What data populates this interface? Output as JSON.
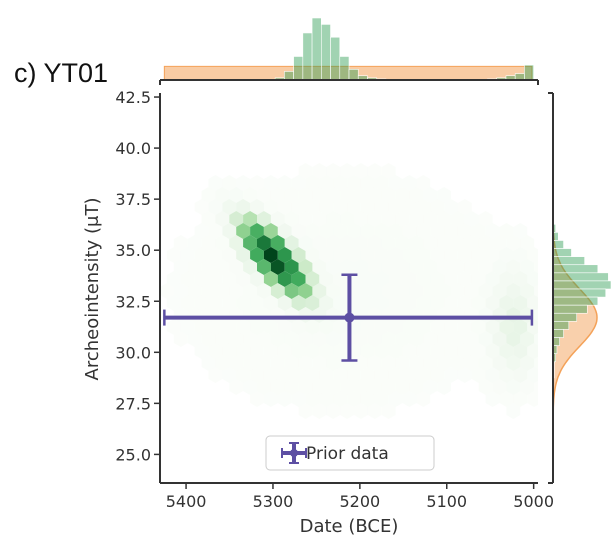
{
  "panel": {
    "label": "c) YT01"
  },
  "chart_data": {
    "type": "scatter",
    "subtype": "hexbin-density with marginal histograms",
    "xlabel": "Date (BCE)",
    "ylabel": "Archeointensity (μT)",
    "x_inverted": true,
    "xlim": [
      5430,
      4995
    ],
    "ylim": [
      23.6,
      42.6
    ],
    "xticks": [
      5400,
      5300,
      5200,
      5100,
      5000
    ],
    "xtick_labels": [
      "5400",
      "5300",
      "5200",
      "5100",
      "5000"
    ],
    "yticks": [
      25.0,
      27.5,
      30.0,
      32.5,
      35.0,
      37.5,
      40.0,
      42.5
    ],
    "ytick_labels": [
      "25.0",
      "27.5",
      "30.0",
      "32.5",
      "35.0",
      "37.5",
      "40.0",
      "42.5"
    ],
    "grid": false,
    "legend": {
      "placement": "bottom-center",
      "entries": [
        "Prior data"
      ]
    },
    "colors": {
      "posterior": "#2e9e55",
      "posterior_dark": "#00441b",
      "prior": "#f4a259",
      "prior_data": "#5d4fa3",
      "axis": "#333333"
    },
    "density": {
      "note": "posterior sample density, hexagonal bins (relative 0-1)",
      "clusters": [
        {
          "x": 5298,
          "y": 34.6,
          "sx": 24,
          "sy": 1.15,
          "rho": 0.75,
          "peak": 1.0
        },
        {
          "x": 5022,
          "y": 31.3,
          "sx": 18,
          "sy": 1.8,
          "rho": 0.0,
          "peak": 0.12
        }
      ]
    },
    "prior_data": {
      "label": "Prior data",
      "x": 5212,
      "x_low": 5425,
      "x_high": 5002,
      "y": 31.7,
      "y_low": 29.6,
      "y_high": 33.8
    },
    "marginal_x": {
      "bins_from": 5425,
      "bins_to": 5000,
      "posterior_counts": [
        0,
        0,
        0,
        0,
        0,
        0,
        0,
        0,
        0,
        0,
        0,
        0,
        2,
        8,
        22,
        44,
        58,
        52,
        40,
        22,
        10,
        4,
        2,
        1,
        0,
        0,
        0,
        0,
        0,
        0,
        0,
        0,
        0,
        0,
        0,
        1,
        2,
        4,
        6,
        14
      ],
      "prior_level": 0.22
    },
    "marginal_y": {
      "bins_from": 42.6,
      "bins_to": 23.6,
      "posterior_counts": [
        0,
        0,
        0,
        0,
        0,
        0,
        0,
        0,
        0,
        0,
        0,
        0,
        0,
        0,
        0,
        1,
        2,
        4,
        8,
        14,
        24,
        34,
        42,
        44,
        40,
        34,
        26,
        18,
        12,
        8,
        5,
        3,
        2,
        1,
        1,
        0,
        0,
        0,
        0,
        0,
        0,
        0,
        0,
        0,
        0,
        0,
        0,
        0
      ],
      "prior_mean": 31.7,
      "prior_sd": 1.4
    }
  }
}
